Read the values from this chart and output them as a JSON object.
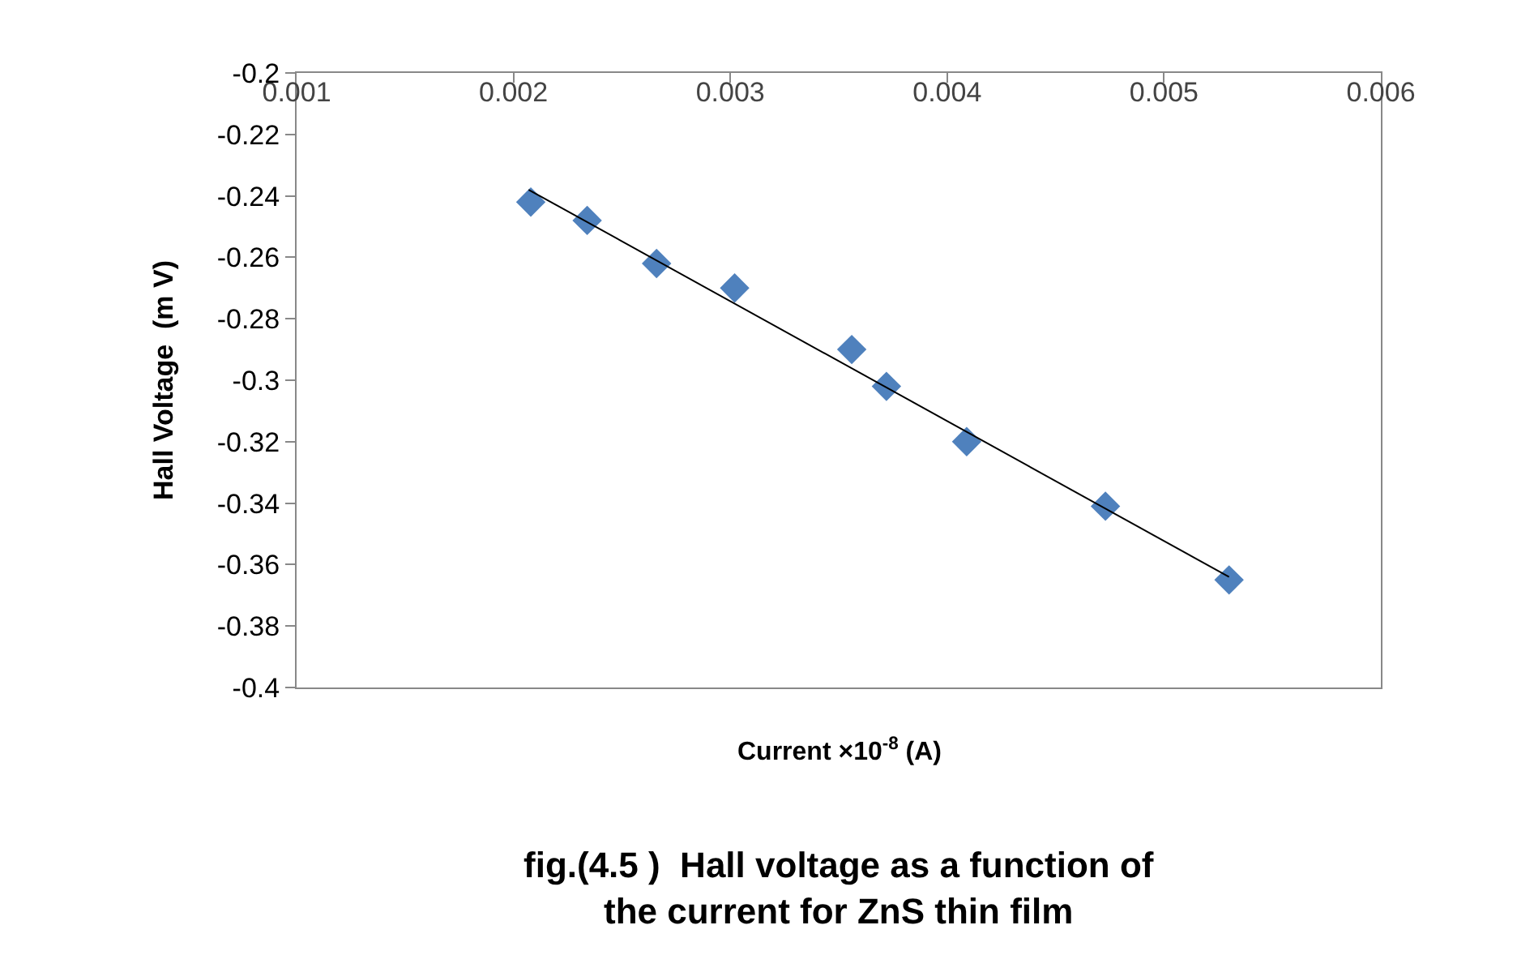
{
  "chart_data": {
    "type": "scatter",
    "title": "fig.(4.5 )  Hall voltage as a function of\nthe current for ZnS thin film",
    "xlabel": "Current ×10$^{-8}$ (A)",
    "ylabel": "Hall Voltage  (m V)",
    "x": [
      0.00208,
      0.00234,
      0.00266,
      0.00302,
      0.00356,
      0.00372,
      0.00409,
      0.00473,
      0.0053
    ],
    "series": [
      {
        "color": "#4f81bd",
        "marker": "diamond",
        "values": [
          -0.242,
          -0.248,
          -0.262,
          -0.27,
          -0.29,
          -0.302,
          -0.32,
          -0.341,
          -0.365
        ]
      },
      {
        "type": "line",
        "color": "#000000",
        "x": [
          0.00207,
          0.0053
        ],
        "values": [
          -0.238,
          -0.364
        ]
      }
    ],
    "xlim": [
      0.001,
      0.006
    ],
    "xticks": [
      0.001,
      0.002,
      0.003,
      0.004,
      0.005,
      0.006
    ],
    "ylim": [
      -0.4,
      -0.2
    ],
    "yticks": [
      -0.2,
      -0.22,
      -0.24,
      -0.26,
      -0.28,
      -0.3,
      -0.32,
      -0.34,
      -0.36,
      -0.38,
      -0.4
    ]
  }
}
